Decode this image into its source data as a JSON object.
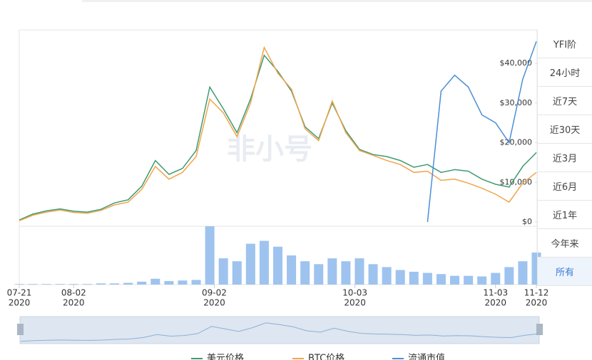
{
  "chart_data": {
    "type": "line",
    "x": [
      "2020-07-21",
      "2020-07-24",
      "2020-07-27",
      "2020-07-30",
      "2020-08-02",
      "2020-08-05",
      "2020-08-08",
      "2020-08-11",
      "2020-08-14",
      "2020-08-17",
      "2020-08-20",
      "2020-08-23",
      "2020-08-26",
      "2020-08-29",
      "2020-09-01",
      "2020-09-04",
      "2020-09-07",
      "2020-09-10",
      "2020-09-13",
      "2020-09-16",
      "2020-09-19",
      "2020-09-22",
      "2020-09-25",
      "2020-09-28",
      "2020-10-01",
      "2020-10-04",
      "2020-10-07",
      "2020-10-10",
      "2020-10-13",
      "2020-10-16",
      "2020-10-19",
      "2020-10-22",
      "2020-10-25",
      "2020-10-28",
      "2020-10-31",
      "2020-11-03",
      "2020-11-06",
      "2020-11-09",
      "2020-11-12"
    ],
    "xlim": [
      "2020-07-21",
      "2020-11-12"
    ],
    "xticks": [
      {
        "value": "2020-07-21",
        "label": [
          "07-21",
          "2020"
        ]
      },
      {
        "value": "2020-08-02",
        "label": [
          "08-02",
          "2020"
        ]
      },
      {
        "value": "2020-09-02",
        "label": [
          "09-02",
          "2020"
        ]
      },
      {
        "value": "2020-10-03",
        "label": [
          "10-03",
          "2020"
        ]
      },
      {
        "value": "2020-11-03",
        "label": [
          "11-03",
          "2020"
        ]
      },
      {
        "value": "2020-11-12",
        "label": [
          "11-12",
          "2020"
        ]
      }
    ],
    "ylim": [
      0,
      48000
    ],
    "yticks": [
      {
        "value": 0,
        "label": "$0"
      },
      {
        "value": 10000,
        "label": "$10,000"
      },
      {
        "value": 20000,
        "label": "$20,000"
      },
      {
        "value": 30000,
        "label": "$30,000"
      },
      {
        "value": 40000,
        "label": "$40,000"
      }
    ],
    "series": [
      {
        "name": "美元价格",
        "color": "#3f9a72",
        "values": [
          500,
          2000,
          2800,
          3300,
          2700,
          2500,
          3200,
          4800,
          5600,
          9000,
          15500,
          12000,
          13500,
          18000,
          34000,
          28500,
          22500,
          31000,
          42000,
          38000,
          33000,
          24000,
          21000,
          30000,
          23000,
          18300,
          17000,
          16500,
          15500,
          13800,
          14500,
          12500,
          13200,
          12800,
          10800,
          9500,
          8800,
          14000,
          17500
        ]
      },
      {
        "name": "BTC价格",
        "color": "#f0a54c",
        "values": [
          300,
          1700,
          2500,
          3000,
          2400,
          2200,
          2900,
          4300,
          5000,
          8200,
          14000,
          10800,
          12500,
          16500,
          31000,
          27500,
          21500,
          30000,
          44000,
          37500,
          33500,
          23500,
          20500,
          30500,
          22500,
          18000,
          16800,
          15500,
          14500,
          12500,
          12800,
          10500,
          10800,
          9800,
          8500,
          7000,
          5000,
          9800,
          12500
        ]
      },
      {
        "name": "流通市值",
        "color": "#4b8fd6",
        "values": [
          null,
          null,
          null,
          null,
          null,
          null,
          null,
          null,
          null,
          null,
          null,
          null,
          null,
          null,
          null,
          null,
          null,
          null,
          null,
          null,
          null,
          null,
          null,
          null,
          null,
          null,
          null,
          null,
          null,
          null,
          0,
          33000,
          37000,
          34000,
          27000,
          25000,
          20000,
          36000,
          45500
        ]
      }
    ],
    "volume": {
      "color": "#9ec3ef",
      "vlim": [
        0,
        100
      ],
      "values": [
        1,
        1,
        1,
        1,
        1,
        1,
        2,
        2,
        3,
        5,
        10,
        6,
        7,
        8,
        100,
        45,
        40,
        70,
        75,
        65,
        50,
        40,
        35,
        45,
        40,
        45,
        35,
        30,
        25,
        22,
        20,
        18,
        15,
        15,
        14,
        20,
        30,
        40,
        55
      ]
    },
    "watermark": "非小号",
    "menu": [
      "YFI阶",
      "24小时",
      "近7天",
      "近30天",
      "近3月",
      "近6月",
      "近1年",
      "今年来",
      "所有"
    ],
    "selected": 8
  }
}
